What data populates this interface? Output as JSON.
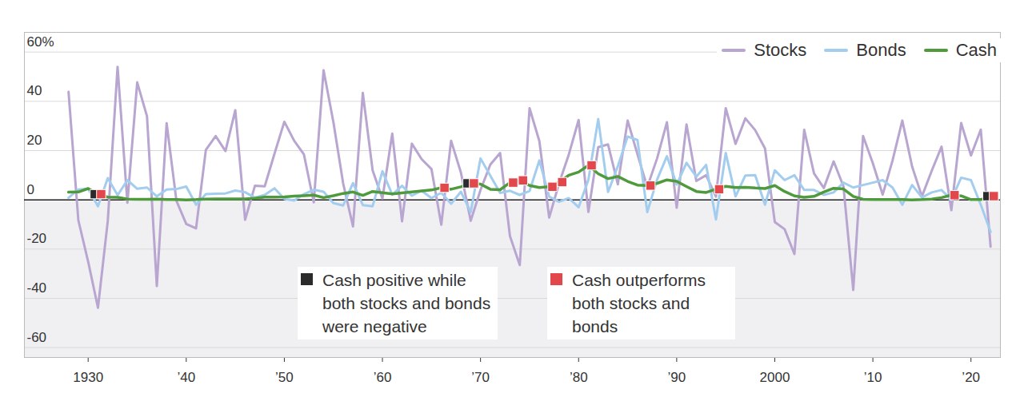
{
  "chart_data": {
    "type": "line",
    "x": [
      1928,
      1929,
      1930,
      1931,
      1932,
      1933,
      1934,
      1935,
      1936,
      1937,
      1938,
      1939,
      1940,
      1941,
      1942,
      1943,
      1944,
      1945,
      1946,
      1947,
      1948,
      1949,
      1950,
      1951,
      1952,
      1953,
      1954,
      1955,
      1956,
      1957,
      1958,
      1959,
      1960,
      1961,
      1962,
      1963,
      1964,
      1965,
      1966,
      1967,
      1968,
      1969,
      1970,
      1971,
      1972,
      1973,
      1974,
      1975,
      1976,
      1977,
      1978,
      1979,
      1980,
      1981,
      1982,
      1983,
      1984,
      1985,
      1986,
      1987,
      1988,
      1989,
      1990,
      1991,
      1992,
      1993,
      1994,
      1995,
      1996,
      1997,
      1998,
      1999,
      2000,
      2001,
      2002,
      2003,
      2004,
      2005,
      2006,
      2007,
      2008,
      2009,
      2010,
      2011,
      2012,
      2013,
      2014,
      2015,
      2016,
      2017,
      2018,
      2019,
      2020,
      2021,
      2022
    ],
    "series": [
      {
        "name": "Stocks",
        "color": "#b9a6d0",
        "values": [
          43.8,
          -8.3,
          -25.1,
          -43.8,
          -8.6,
          54.0,
          -1.2,
          47.7,
          33.9,
          -35.0,
          31.1,
          -0.4,
          -9.8,
          -11.6,
          20.3,
          25.9,
          19.8,
          36.4,
          -8.1,
          5.7,
          5.5,
          18.8,
          31.7,
          24.0,
          18.4,
          -1.0,
          52.6,
          31.6,
          6.6,
          -10.8,
          43.4,
          12.0,
          0.5,
          26.9,
          -8.7,
          22.8,
          16.5,
          12.5,
          -10.1,
          24.0,
          11.1,
          -8.5,
          4.0,
          14.3,
          19.0,
          -14.7,
          -26.5,
          37.2,
          23.8,
          -7.2,
          6.6,
          18.4,
          32.4,
          -4.9,
          21.4,
          22.5,
          6.3,
          32.2,
          18.5,
          5.2,
          16.8,
          31.5,
          -3.2,
          30.6,
          7.7,
          10.0,
          1.3,
          37.2,
          22.7,
          33.1,
          28.3,
          20.9,
          -9.0,
          -11.9,
          -22.0,
          28.4,
          10.7,
          4.8,
          15.6,
          5.5,
          -36.6,
          25.9,
          14.8,
          2.1,
          15.9,
          32.2,
          13.5,
          1.4,
          11.8,
          21.6,
          -4.2,
          31.2,
          18.0,
          28.5,
          -19.0
        ]
      },
      {
        "name": "Bonds",
        "color": "#a3cdee",
        "values": [
          0.8,
          4.2,
          4.5,
          -2.6,
          8.8,
          1.9,
          8.0,
          4.5,
          5.0,
          1.4,
          4.2,
          4.4,
          5.4,
          -2.0,
          2.3,
          2.5,
          2.6,
          3.8,
          3.1,
          0.9,
          2.0,
          4.7,
          0.4,
          -0.3,
          2.3,
          4.1,
          3.3,
          -1.3,
          -2.3,
          6.8,
          -2.1,
          -2.6,
          11.6,
          2.1,
          5.7,
          1.7,
          3.7,
          0.7,
          2.9,
          -1.6,
          3.3,
          -5.0,
          16.8,
          9.8,
          2.8,
          3.7,
          2.0,
          3.6,
          16.0,
          1.3,
          -0.8,
          0.7,
          -3.0,
          8.2,
          32.8,
          3.2,
          13.7,
          25.7,
          24.3,
          -5.0,
          8.2,
          17.7,
          6.2,
          15.0,
          9.4,
          14.2,
          -8.0,
          19.0,
          1.4,
          9.9,
          10.0,
          -2.0,
          12.0,
          8.0,
          10.0,
          4.0,
          4.0,
          2.0,
          3.0,
          7.0,
          5.0,
          6.0,
          7.0,
          8.0,
          5.0,
          -2.0,
          6.0,
          1.0,
          3.0,
          4.0,
          0.0,
          9.0,
          8.0,
          -2.0,
          -13.0
        ]
      },
      {
        "name": "Cash",
        "color": "#4f9a3c",
        "values": [
          3.1,
          3.2,
          4.6,
          2.3,
          1.1,
          1.0,
          0.3,
          0.2,
          0.2,
          0.3,
          0.1,
          0.1,
          0.0,
          0.1,
          0.3,
          0.4,
          0.4,
          0.4,
          0.4,
          0.6,
          1.1,
          1.1,
          1.2,
          1.5,
          1.7,
          1.9,
          0.9,
          1.7,
          2.6,
          3.2,
          1.8,
          3.4,
          2.9,
          2.4,
          2.8,
          3.2,
          3.6,
          4.0,
          4.9,
          4.3,
          5.3,
          6.7,
          6.4,
          4.3,
          4.1,
          7.0,
          7.9,
          5.8,
          5.0,
          5.3,
          7.2,
          10.0,
          11.3,
          14.0,
          10.6,
          8.6,
          9.5,
          7.5,
          6.0,
          5.8,
          6.7,
          8.1,
          7.5,
          5.4,
          3.4,
          3.0,
          4.3,
          5.5,
          5.0,
          5.1,
          4.8,
          4.6,
          5.8,
          3.4,
          1.6,
          1.0,
          1.4,
          3.2,
          4.7,
          4.4,
          1.4,
          0.2,
          0.1,
          0.1,
          0.1,
          0.1,
          0.0,
          0.1,
          0.3,
          0.9,
          1.9,
          1.6,
          0.1,
          0.1,
          1.5
        ]
      },
      {
        "name": "Cash positive while both stocks and bonds were negative",
        "type": "scatter",
        "marker": "square",
        "color": "#2b2b2b",
        "x": [
          1931,
          1969,
          2022
        ],
        "values": [
          2.3,
          6.7,
          1.5
        ]
      },
      {
        "name": "Cash outperforms both stocks and bonds",
        "type": "scatter",
        "marker": "square",
        "color": "#e2474b",
        "x": [
          1931,
          1966,
          1969,
          1973,
          1974,
          1977,
          1978,
          1981,
          1987,
          1994,
          2018,
          2022
        ],
        "values": [
          2.3,
          4.9,
          6.7,
          7.0,
          7.9,
          5.3,
          7.2,
          14.0,
          5.8,
          4.3,
          1.9,
          1.5
        ]
      }
    ],
    "xlim": [
      1923.5,
      2023
    ],
    "xticks": [
      1930,
      {
        "value": 1940,
        "label": "’40"
      },
      {
        "value": 1950,
        "label": "’50"
      },
      {
        "value": 1960,
        "label": "’60"
      },
      {
        "value": 1970,
        "label": "’70"
      },
      {
        "value": 1980,
        "label": "’80"
      },
      {
        "value": 1990,
        "label": "’90"
      },
      2000,
      {
        "value": 2010,
        "label": "’10"
      },
      {
        "value": 2020,
        "label": "’20"
      }
    ],
    "ylim": [
      -64,
      68
    ],
    "yticks": [
      {
        "value": 60,
        "label": "60%"
      },
      40,
      20,
      0,
      -20,
      -40,
      -60
    ],
    "grid": true,
    "legend": "top-right"
  }
}
